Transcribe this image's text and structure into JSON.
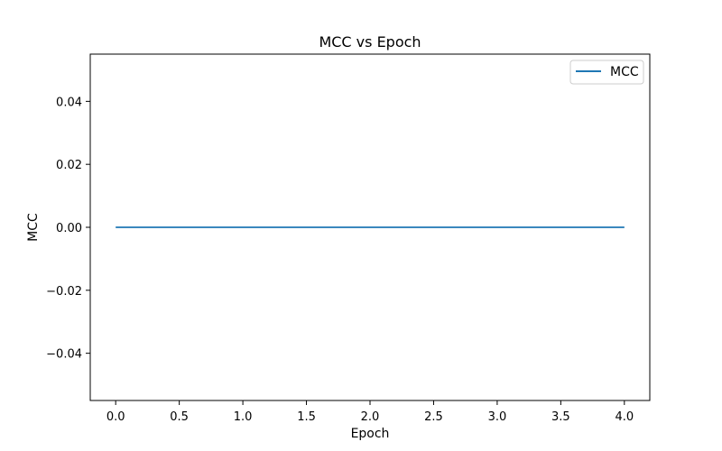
{
  "chart_data": {
    "type": "line",
    "title": "MCC vs Epoch",
    "xlabel": "Epoch",
    "ylabel": "MCC",
    "xlim": [
      -0.2,
      4.2
    ],
    "ylim": [
      -0.055,
      0.055
    ],
    "xticks": [
      0.0,
      0.5,
      1.0,
      1.5,
      2.0,
      2.5,
      3.0,
      3.5,
      4.0
    ],
    "xtick_labels": [
      "0.0",
      "0.5",
      "1.0",
      "1.5",
      "2.0",
      "2.5",
      "3.0",
      "3.5",
      "4.0"
    ],
    "yticks": [
      -0.04,
      -0.02,
      0.0,
      0.02,
      0.04
    ],
    "ytick_labels": [
      "−0.04",
      "−0.02",
      "0.00",
      "0.02",
      "0.04"
    ],
    "grid": false,
    "legend_position": "top-right",
    "series": [
      {
        "name": "MCC",
        "color": "#1f77b4",
        "x": [
          0,
          1,
          2,
          3,
          4
        ],
        "y": [
          0,
          0,
          0,
          0,
          0
        ]
      }
    ]
  }
}
